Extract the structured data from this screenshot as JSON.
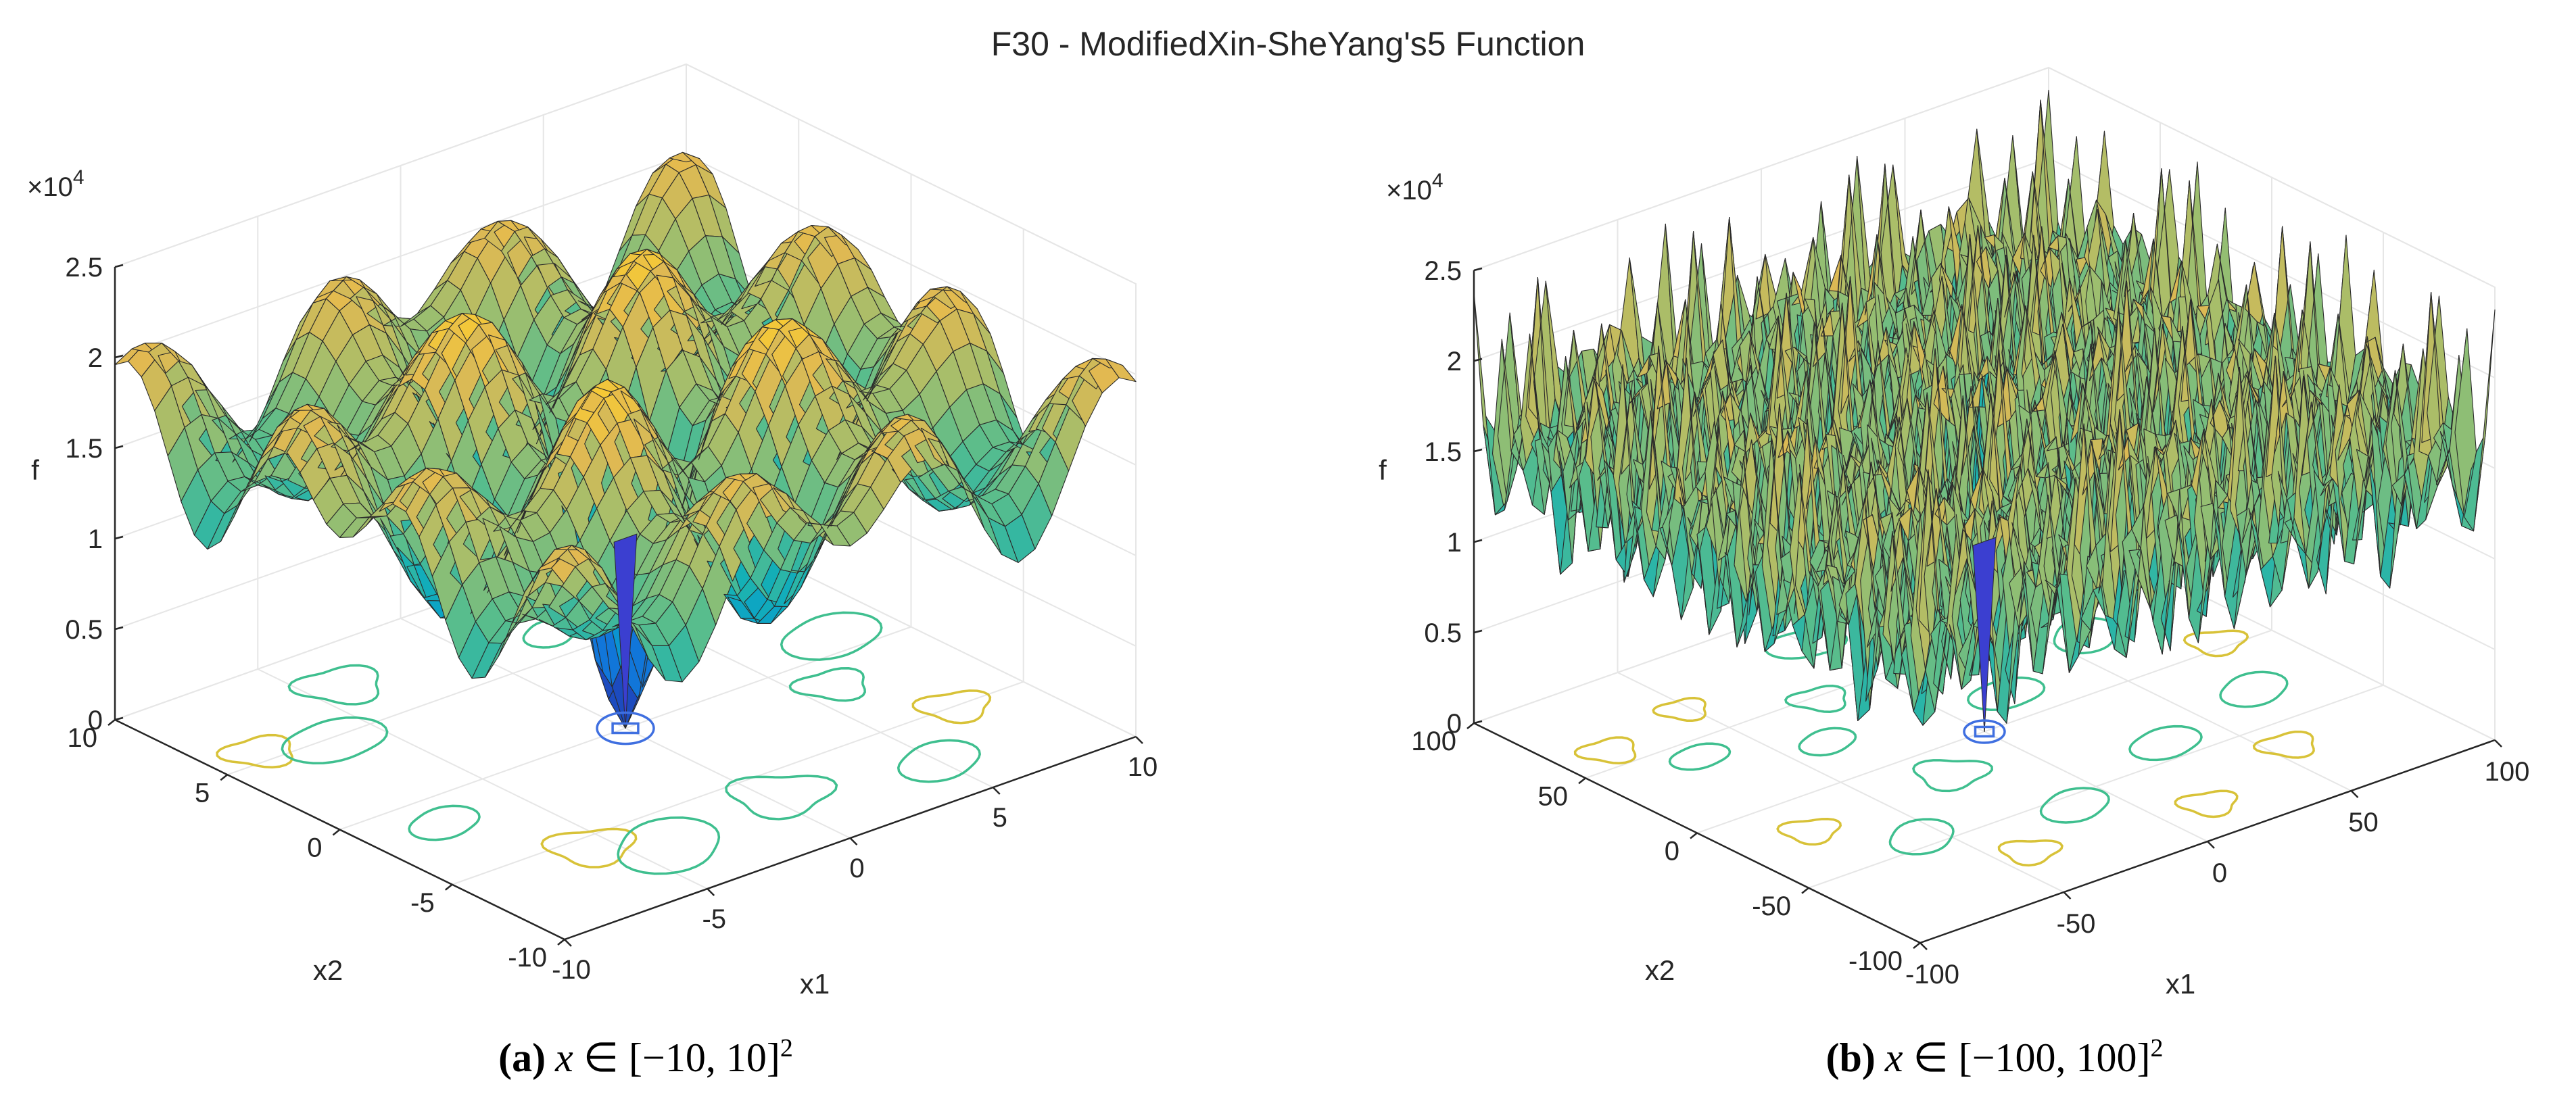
{
  "figure": {
    "title": "F30 - ModifiedXin-SheYang's5 Function"
  },
  "chart_data": [
    {
      "type": "surface",
      "title": "F30 - ModifiedXin-SheYang's5 Function",
      "caption": {
        "label": "(a)",
        "var": "x",
        "rest": " ∈ [−10, 10]",
        "sup": "2"
      },
      "xlabel": "x1",
      "ylabel": "x2",
      "zlabel": "f",
      "z_multiplier": "×10",
      "z_multiplier_exp": "4",
      "xlim": [
        -10,
        10
      ],
      "ylim": [
        -10,
        10
      ],
      "zlim": [
        0,
        2.5
      ],
      "x_ticks": [
        "-10",
        "-5",
        "0",
        "5",
        "10"
      ],
      "y_ticks": [
        "-10",
        "-5",
        "0",
        "5",
        "10"
      ],
      "z_ticks": [
        "0",
        "0.5",
        "1",
        "1.5",
        "2",
        "2.5"
      ],
      "global_minimum": {
        "x1": 0,
        "x2": 0,
        "f": 0
      },
      "colormap": "parula"
    },
    {
      "type": "surface",
      "title": "F30 - ModifiedXin-SheYang's5 Function",
      "caption": {
        "label": "(b)",
        "var": "x",
        "rest": " ∈ [−100, 100]",
        "sup": "2"
      },
      "xlabel": "x1",
      "ylabel": "x2",
      "zlabel": "f",
      "z_multiplier": "×10",
      "z_multiplier_exp": "4",
      "xlim": [
        -100,
        100
      ],
      "ylim": [
        -100,
        100
      ],
      "zlim": [
        0,
        2.5
      ],
      "x_ticks": [
        "-100",
        "-50",
        "0",
        "50",
        "100"
      ],
      "y_ticks": [
        "-100",
        "-50",
        "0",
        "50",
        "100"
      ],
      "z_ticks": [
        "0",
        "0.5",
        "1",
        "1.5",
        "2",
        "2.5"
      ],
      "global_minimum": {
        "x1": 0,
        "x2": 0,
        "f": 0
      },
      "colormap": "parula"
    }
  ]
}
